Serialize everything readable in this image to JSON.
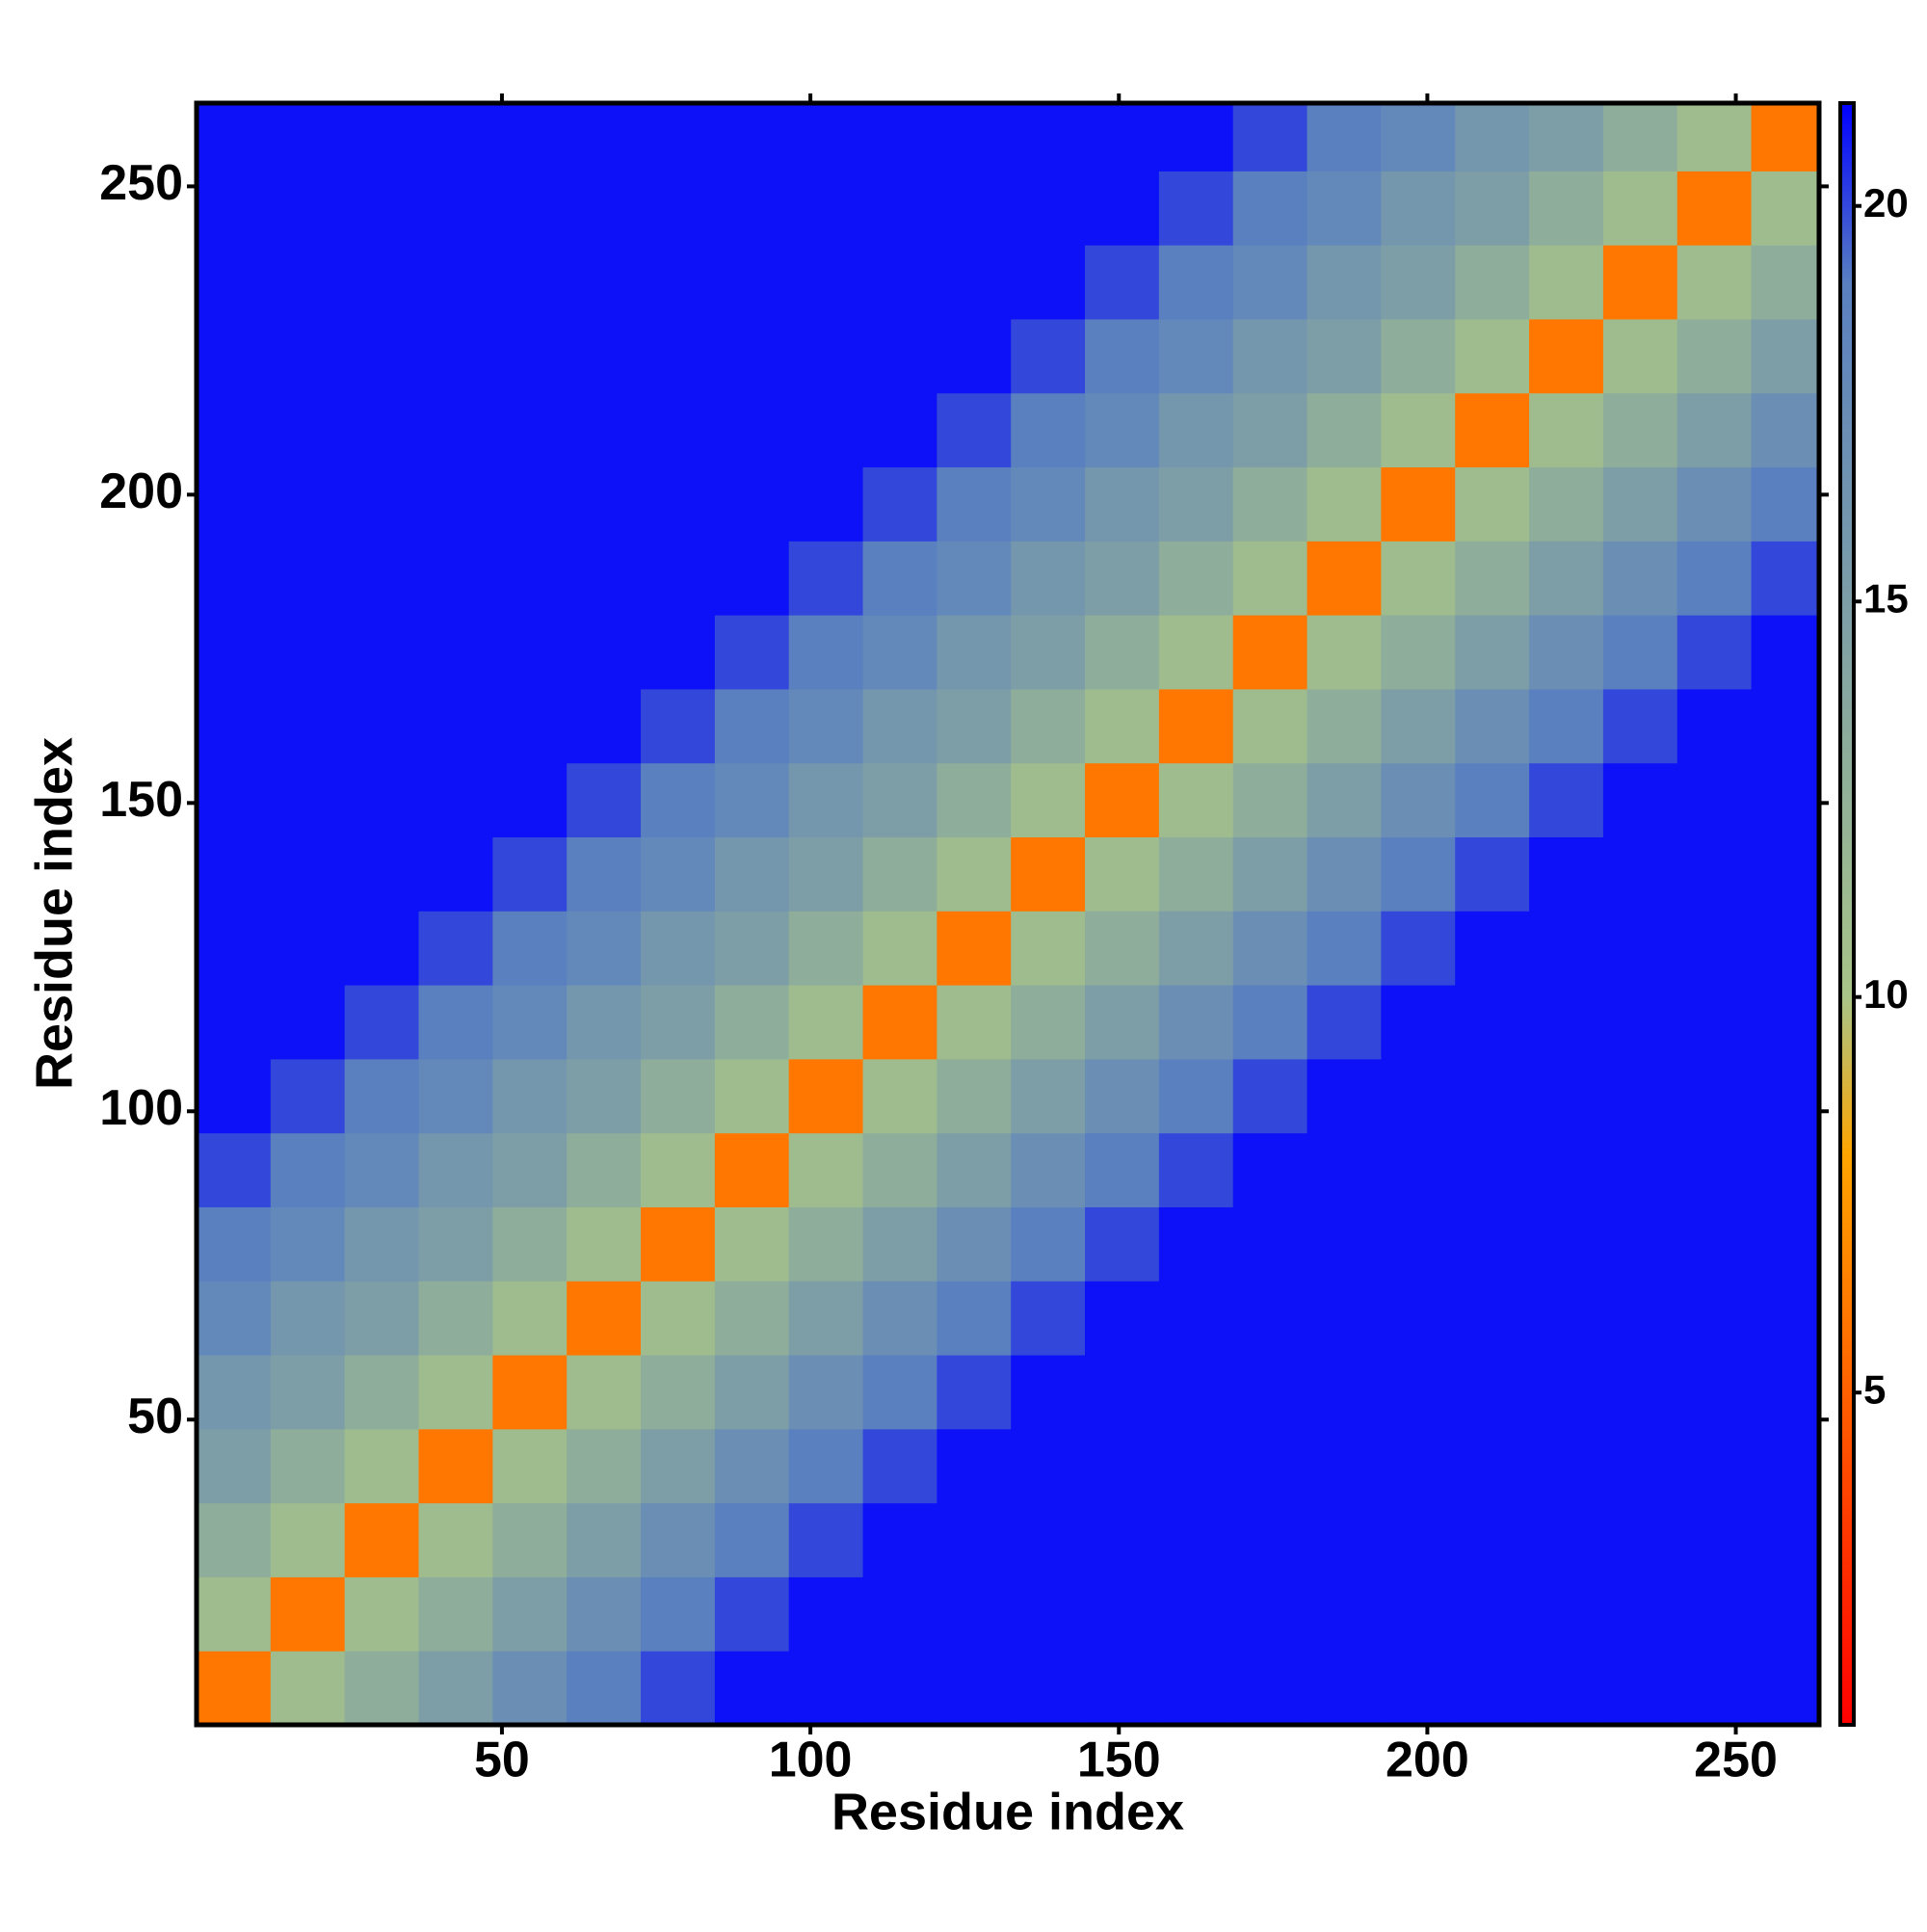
{
  "chart_data": {
    "type": "heatmap",
    "x_label": "Residue index",
    "y_label": "Residue index",
    "xbins": [
      0.5,
      12.5,
      24.5,
      36.5,
      48.5,
      60.5,
      72.5,
      84.5,
      96.5,
      108.5,
      120.5,
      132.5,
      144.5,
      156.5,
      168.5,
      180.5,
      192.5,
      204.5,
      216.5,
      228.5,
      240.5,
      252.5,
      263.5
    ],
    "ybins": [
      0.5,
      12.5,
      24.5,
      36.5,
      48.5,
      60.5,
      72.5,
      84.5,
      96.5,
      108.5,
      120.5,
      132.5,
      144.5,
      156.5,
      168.5,
      180.5,
      192.5,
      204.5,
      216.5,
      228.5,
      240.5,
      252.5,
      263.5
    ],
    "values": [
      [
        6,
        11,
        13,
        15,
        17,
        19,
        20,
        21,
        21,
        21,
        21,
        21,
        21,
        21,
        21,
        21,
        21,
        21,
        21,
        21,
        21,
        21
      ],
      [
        11,
        6,
        11,
        13,
        15,
        17,
        19,
        20,
        21,
        21,
        21,
        21,
        21,
        21,
        21,
        21,
        21,
        21,
        21,
        21,
        21,
        21
      ],
      [
        13,
        11,
        6,
        11,
        13,
        15,
        17,
        19,
        20,
        21,
        21,
        21,
        21,
        21,
        21,
        21,
        21,
        21,
        21,
        21,
        21,
        21
      ],
      [
        15,
        13,
        11,
        6,
        11,
        13,
        15,
        17,
        19,
        20,
        21,
        21,
        21,
        21,
        21,
        21,
        21,
        21,
        21,
        21,
        21,
        21
      ],
      [
        16,
        15,
        13,
        11,
        6,
        11,
        13,
        15,
        17,
        19,
        20,
        21,
        21,
        21,
        21,
        21,
        21,
        21,
        21,
        21,
        21,
        21
      ],
      [
        18,
        16,
        15,
        13,
        11,
        6,
        11,
        13,
        15,
        17,
        19,
        20,
        21,
        21,
        21,
        21,
        21,
        21,
        21,
        21,
        21,
        21
      ],
      [
        19,
        18,
        16,
        15,
        13,
        11,
        6,
        11,
        13,
        15,
        17,
        19,
        20,
        21,
        21,
        21,
        21,
        21,
        21,
        21,
        21,
        21
      ],
      [
        20,
        19,
        18,
        16,
        15,
        13,
        11,
        6,
        11,
        13,
        15,
        17,
        19,
        20,
        21,
        21,
        21,
        21,
        21,
        21,
        21,
        21
      ],
      [
        21,
        20,
        19,
        18,
        16,
        15,
        13,
        11,
        6,
        11,
        13,
        15,
        17,
        19,
        20,
        21,
        21,
        21,
        21,
        21,
        21,
        21
      ],
      [
        21,
        21,
        20,
        19,
        18,
        16,
        15,
        13,
        11,
        6,
        11,
        13,
        15,
        17,
        19,
        20,
        21,
        21,
        21,
        21,
        21,
        21
      ],
      [
        21,
        21,
        21,
        20,
        19,
        18,
        16,
        15,
        13,
        11,
        6,
        11,
        13,
        15,
        17,
        19,
        20,
        21,
        21,
        21,
        21,
        21
      ],
      [
        21,
        21,
        21,
        21,
        20,
        19,
        18,
        16,
        15,
        13,
        11,
        6,
        11,
        13,
        15,
        17,
        19,
        20,
        21,
        21,
        21,
        21
      ],
      [
        21,
        21,
        21,
        21,
        21,
        20,
        19,
        18,
        16,
        15,
        13,
        11,
        6,
        11,
        13,
        15,
        17,
        19,
        20,
        21,
        21,
        21
      ],
      [
        21,
        21,
        21,
        21,
        21,
        21,
        20,
        19,
        18,
        16,
        15,
        13,
        11,
        6,
        11,
        13,
        15,
        17,
        19,
        20,
        21,
        21
      ],
      [
        21,
        21,
        21,
        21,
        21,
        21,
        21,
        20,
        19,
        18,
        16,
        15,
        13,
        11,
        6,
        11,
        13,
        15,
        17,
        19,
        20,
        21
      ],
      [
        21,
        21,
        21,
        21,
        21,
        21,
        21,
        21,
        20,
        19,
        18,
        16,
        15,
        13,
        11,
        6,
        11,
        13,
        15,
        17,
        19,
        20
      ],
      [
        21,
        21,
        21,
        21,
        21,
        21,
        21,
        21,
        21,
        20,
        19,
        18,
        16,
        15,
        13,
        11,
        6,
        11,
        13,
        15,
        17,
        19
      ],
      [
        21,
        21,
        21,
        21,
        21,
        21,
        21,
        21,
        21,
        21,
        20,
        19,
        18,
        16,
        15,
        13,
        11,
        6,
        11,
        13,
        15,
        17
      ],
      [
        21,
        21,
        21,
        21,
        21,
        21,
        21,
        21,
        21,
        21,
        21,
        20,
        19,
        18,
        16,
        15,
        13,
        11,
        6,
        11,
        13,
        15
      ],
      [
        21,
        21,
        21,
        21,
        21,
        21,
        21,
        21,
        21,
        21,
        21,
        21,
        20,
        19,
        18,
        16,
        15,
        13,
        11,
        6,
        11,
        13
      ],
      [
        21,
        21,
        21,
        21,
        21,
        21,
        21,
        21,
        21,
        21,
        21,
        21,
        21,
        20,
        19,
        18,
        16,
        15,
        13,
        11,
        6,
        11
      ],
      [
        21,
        21,
        21,
        21,
        21,
        21,
        21,
        21,
        21,
        21,
        21,
        21,
        21,
        21,
        20,
        19,
        18,
        16,
        15,
        13,
        11,
        6
      ]
    ],
    "xlim": [
      0.5,
      263.5
    ],
    "ylim": [
      0.5,
      263.5
    ],
    "xticks": [
      50,
      100,
      150,
      200,
      250
    ],
    "yticks": [
      50,
      100,
      150,
      200,
      250
    ],
    "clim": [
      0.8,
      21.3
    ],
    "cticks": [
      5,
      10,
      15,
      20
    ],
    "colorscale": [
      [
        0.8,
        "#ff0000"
      ],
      [
        8,
        "#ffa500"
      ],
      [
        10,
        "#a8c488"
      ],
      [
        19,
        "#5a80c0"
      ],
      [
        21.3,
        "#0000ff"
      ]
    ]
  }
}
